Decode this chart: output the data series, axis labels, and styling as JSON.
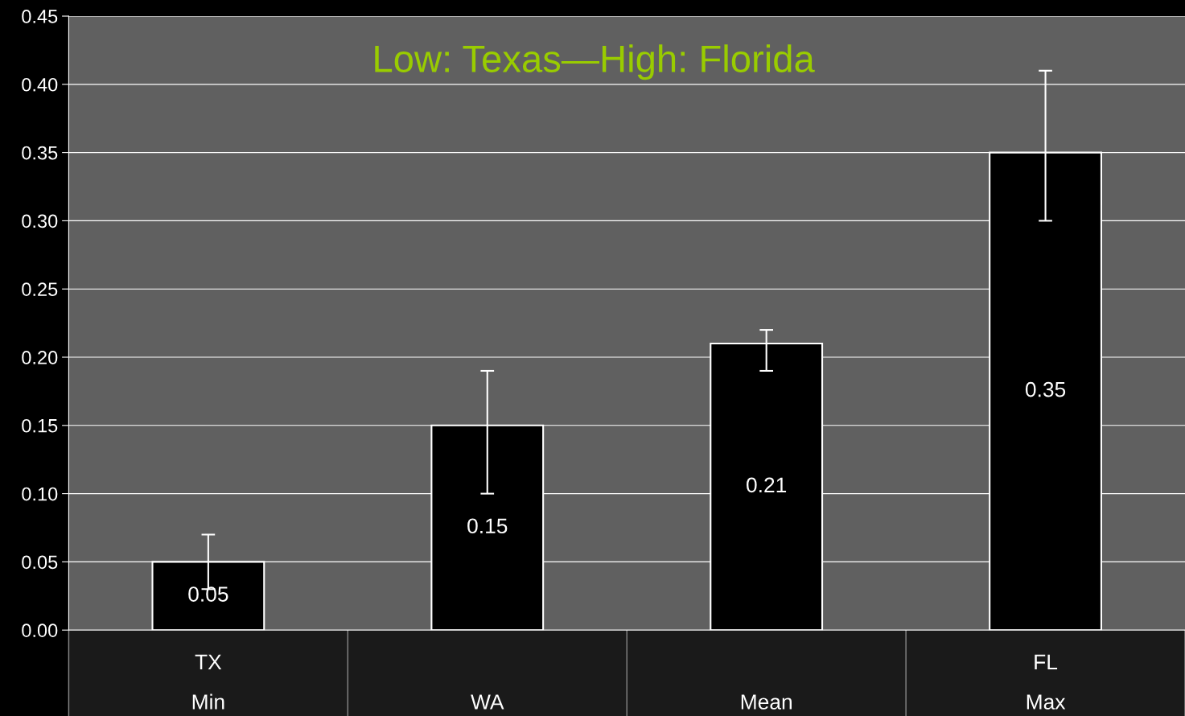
{
  "chart_data": {
    "type": "bar",
    "title": "Low: Texas—High: Florida",
    "categories": [
      "TX\nMin",
      "WA",
      "Mean",
      "FL\nMax"
    ],
    "values": [
      0.05,
      0.15,
      0.21,
      0.35
    ],
    "errors": [
      [
        0.03,
        0.07
      ],
      [
        0.1,
        0.19
      ],
      [
        0.19,
        0.22
      ],
      [
        0.3,
        0.41
      ]
    ],
    "color": "#000000",
    "data_labels": true,
    "ylim": [
      0,
      0.45
    ],
    "yticks": [
      {
        "value": 0,
        "label": "0.00"
      },
      0.05,
      {
        "value": 0.1,
        "label": "0.10"
      },
      0.15,
      {
        "value": 0.2,
        "label": "0.20"
      },
      0.25,
      {
        "value": 0.3,
        "label": "0.30"
      },
      0.35,
      {
        "value": 0.4,
        "label": "0.40"
      },
      0.45
    ],
    "grid": "y"
  }
}
